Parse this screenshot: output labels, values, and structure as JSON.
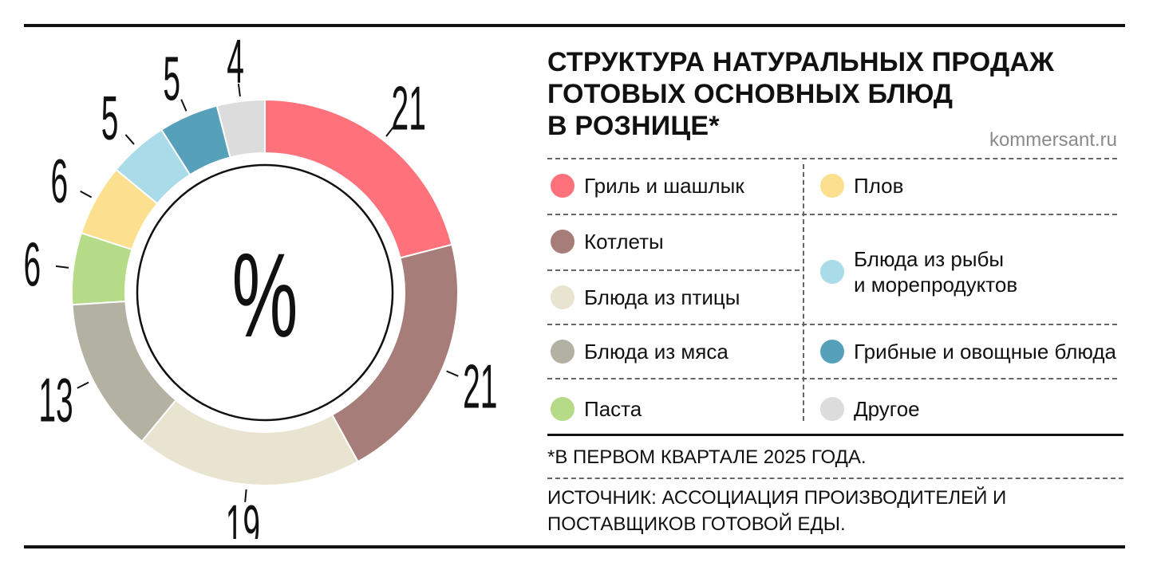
{
  "title_lines": [
    "СТРУКТУРА НАТУРАЛЬНЫХ ПРОДАЖ",
    "ГОТОВЫХ ОСНОВНЫХ БЛЮД",
    "В РОЗНИЦЕ*"
  ],
  "site": "kommersant.ru",
  "footnote": "*В ПЕРВОМ КВАРТАЛЕ 2025 ГОДА.",
  "source": "ИСТОЧНИК: АССОЦИАЦИЯ ПРОИЗВОДИТЕЛЕЙ И ПОСТАВЩИКОВ ГОТОВОЙ ЕДЫ.",
  "center_label": "%",
  "legend": {
    "left": [
      {
        "label": "Гриль и шашлык",
        "color": "#ff727c"
      },
      {
        "label": "Котлеты",
        "color": "#a67d79"
      },
      {
        "label": "Блюда из птицы",
        "color": "#e8e4d0"
      },
      {
        "label": "Блюда из мяса",
        "color": "#b3b1a2"
      },
      {
        "label": "Паста",
        "color": "#b5da88"
      }
    ],
    "right": [
      {
        "label": "Плов",
        "color": "#fde08f"
      },
      {
        "label": "Блюда из рыбы\nи морепродуктов",
        "color": "#a9dbe9"
      },
      {
        "label": "Грибные и овощные блюда",
        "color": "#57a0ba"
      },
      {
        "label": "Другое",
        "color": "#dcdcdc"
      }
    ]
  },
  "chart_data": {
    "type": "pie",
    "donut": true,
    "unit": "%",
    "series": [
      {
        "name": "Гриль и шашлык",
        "value": 21,
        "color": "#ff727c"
      },
      {
        "name": "Котлеты",
        "value": 21,
        "color": "#a67d79"
      },
      {
        "name": "Блюда из птицы",
        "value": 19,
        "color": "#e8e4d0"
      },
      {
        "name": "Блюда из мяса",
        "value": 13,
        "color": "#b3b1a2"
      },
      {
        "name": "Паста",
        "value": 6,
        "color": "#b5da88"
      },
      {
        "name": "Плов",
        "value": 6,
        "color": "#fde08f"
      },
      {
        "name": "Блюда из рыбы и морепродуктов",
        "value": 5,
        "color": "#a9dbe9"
      },
      {
        "name": "Грибные и овощные блюда",
        "value": 5,
        "color": "#57a0ba"
      },
      {
        "name": "Другое",
        "value": 4,
        "color": "#dcdcdc"
      }
    ]
  }
}
